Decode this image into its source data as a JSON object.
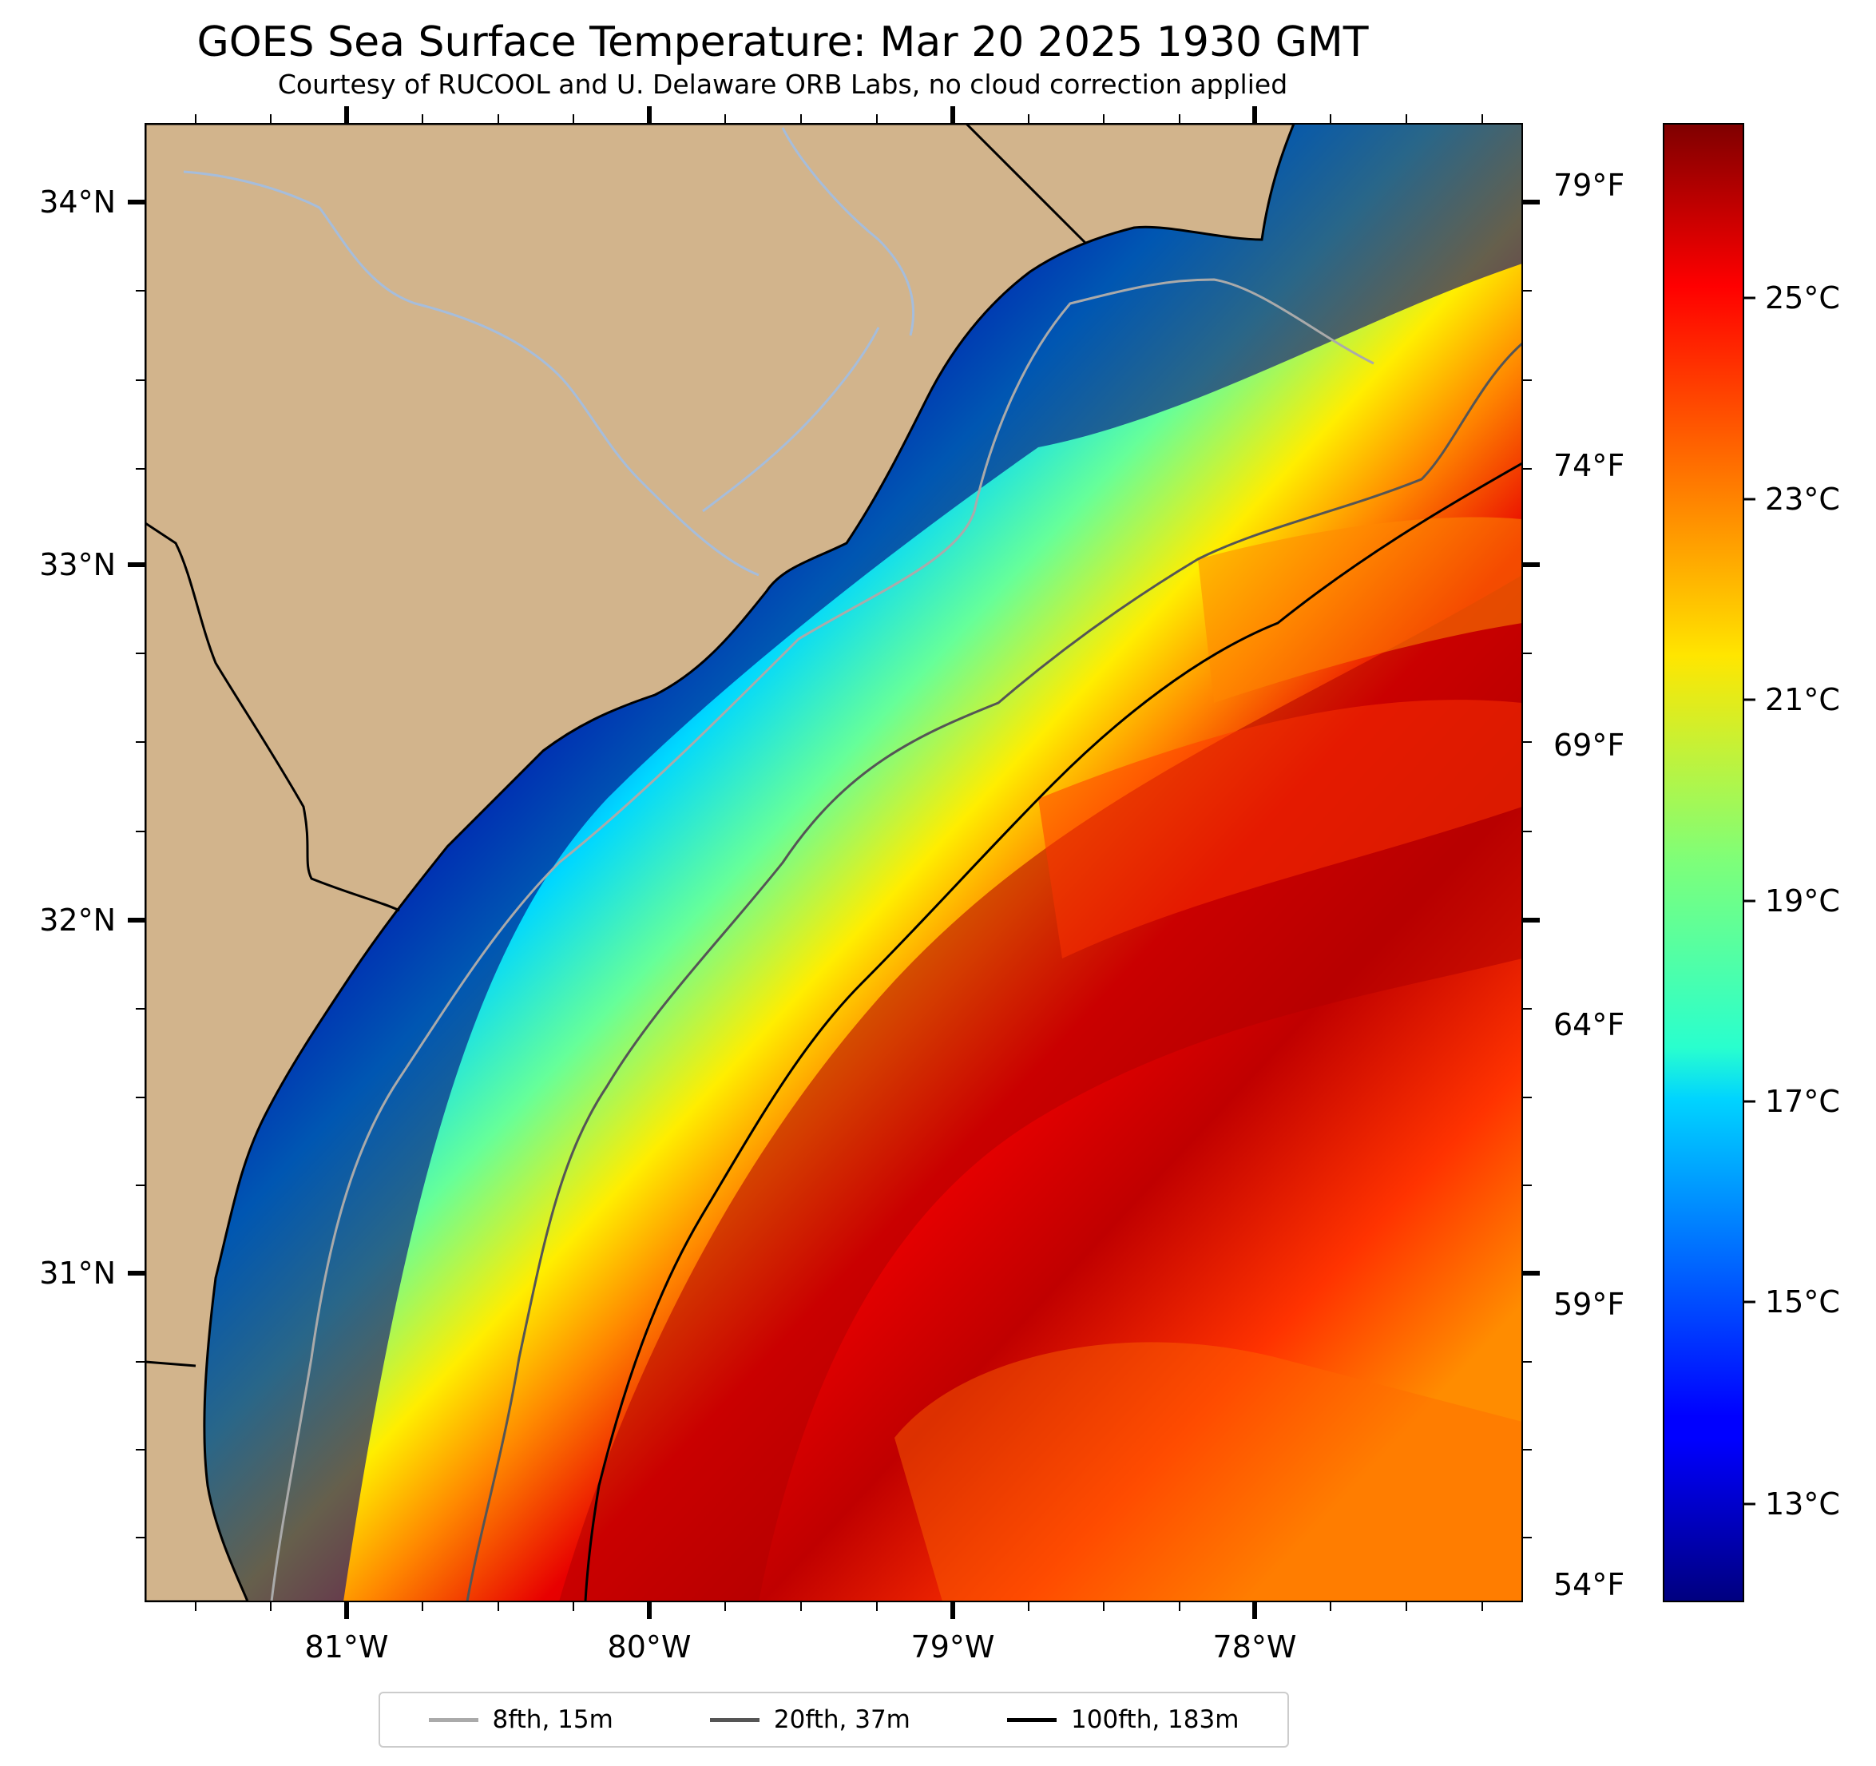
{
  "title": "GOES Sea Surface Temperature: Mar 20 2025 1930 GMT",
  "subtitle": "Courtesy of RUCOOL and U. Delaware ORB Labs, no cloud correction applied",
  "map": {
    "lon_ticks": [
      "81°W",
      "80°W",
      "79°W",
      "78°W"
    ],
    "lat_ticks": [
      "34°N",
      "33°N",
      "32°N",
      "31°N"
    ],
    "colors": {
      "land": "#d2b48c",
      "river": "#a6bddb",
      "coast": "#000000"
    }
  },
  "fahrenheit_ticks": [
    "79°F",
    "74°F",
    "69°F",
    "64°F",
    "59°F",
    "54°F"
  ],
  "colorbar": {
    "celsius_ticks": [
      "25°C",
      "23°C",
      "21°C",
      "19°C",
      "17°C",
      "15°C",
      "13°C"
    ],
    "colormap": "jet"
  },
  "legend": [
    {
      "label": "8fth, 15m",
      "color": "#aaaaaa"
    },
    {
      "label": "20fth, 37m",
      "color": "#555555"
    },
    {
      "label": "100fth, 183m",
      "color": "#000000"
    }
  ]
}
